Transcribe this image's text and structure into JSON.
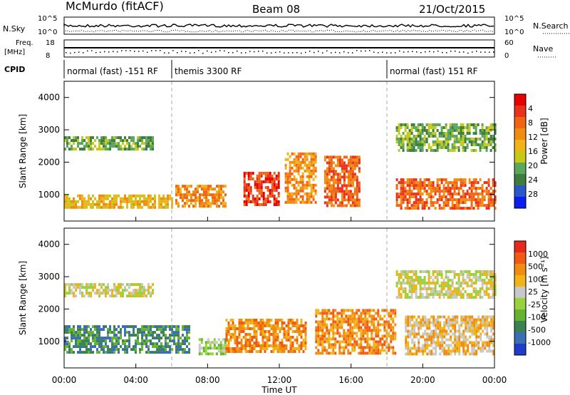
{
  "header": {
    "station": "McMurdo (fitACF)",
    "beam": "Beam 08",
    "date": "21/Oct/2015"
  },
  "status_panels": {
    "left_labels": {
      "nsky": "N.Sky",
      "freq_a": "Freq.",
      "freq_b": "[MHz]",
      "cpid": "CPID"
    },
    "right_labels": {
      "nsearch": "N.Search",
      "nave": "Nave"
    },
    "noise_ticks_left": [
      "10^5",
      "10^0"
    ],
    "noise_ticks_right": [
      "10^5",
      "10^0"
    ],
    "freq_ticks": [
      "18",
      "8"
    ],
    "nave_ticks": [
      "60",
      "0"
    ],
    "cpid_segments": [
      {
        "label": "normal (fast) -151 RF",
        "start_hour": 0.0,
        "end_hour": 6.0
      },
      {
        "label": "themis 3300 RF",
        "start_hour": 6.0,
        "end_hour": 18.0
      },
      {
        "label": "normal (fast) 151 RF",
        "start_hour": 18.0,
        "end_hour": 24.0
      }
    ]
  },
  "chart_data": [
    {
      "type": "heatmap",
      "panel": "power",
      "ylabel": "Slant Range [km]",
      "xlabel": "Time UT",
      "xlim": [
        0,
        24
      ],
      "ylim": [
        180,
        4500
      ],
      "y_ticks": [
        1000,
        2000,
        3000,
        4000
      ],
      "x_tick_labels": [
        "00:00",
        "04:00",
        "08:00",
        "12:00",
        "16:00",
        "20:00",
        "00:00"
      ],
      "x_tick_hours": [
        0,
        4,
        8,
        12,
        16,
        20,
        24
      ],
      "colorbar": {
        "title": "Power [dB]",
        "ticks": [
          "4",
          "8",
          "12",
          "16",
          "20",
          "24",
          "28"
        ],
        "colors": [
          "#0a1ef0",
          "#2a58c8",
          "#3f7d3c",
          "#5aa85a",
          "#c8c818",
          "#f0b418",
          "#f08c10",
          "#f06414",
          "#e8321e",
          "#e80000"
        ]
      },
      "bands": [
        {
          "start_hour": 0.0,
          "end_hour": 6.0,
          "range_low": 600,
          "range_high": 1000,
          "level": 5
        },
        {
          "start_hour": 6.2,
          "end_hour": 9.0,
          "range_low": 600,
          "range_high": 1300,
          "level": 6
        },
        {
          "start_hour": 10.0,
          "end_hour": 12.0,
          "range_low": 700,
          "range_high": 1700,
          "level": 8
        },
        {
          "start_hour": 12.3,
          "end_hour": 14.0,
          "range_low": 800,
          "range_high": 2300,
          "level": 6
        },
        {
          "start_hour": 14.5,
          "end_hour": 16.5,
          "range_low": 700,
          "range_high": 2200,
          "level": 7
        },
        {
          "start_hour": 18.5,
          "end_hour": 24.0,
          "range_low": 600,
          "range_high": 1500,
          "level": 7
        },
        {
          "start_hour": 0.0,
          "end_hour": 5.0,
          "range_low": 2400,
          "range_high": 2800,
          "level": 3
        },
        {
          "start_hour": 18.5,
          "end_hour": 24.0,
          "range_low": 2400,
          "range_high": 3200,
          "level": 3
        }
      ]
    },
    {
      "type": "heatmap",
      "panel": "velocity",
      "ylabel": "Slant Range [km]",
      "xlabel": "Time UT",
      "xlim": [
        0,
        24
      ],
      "ylim": [
        180,
        4500
      ],
      "y_ticks": [
        1000,
        2000,
        3000,
        4000
      ],
      "x_tick_labels": [
        "00:00",
        "04:00",
        "08:00",
        "12:00",
        "16:00",
        "20:00",
        "00:00"
      ],
      "x_tick_hours": [
        0,
        4,
        8,
        12,
        16,
        20,
        24
      ],
      "colorbar": {
        "title": "Velocity [m s⁻¹]",
        "ticks": [
          "1000",
          "500",
          "100",
          "25",
          "-25",
          "-100",
          "-500",
          "-1000"
        ],
        "colors": [
          "#1e3cc8",
          "#3c6eb4",
          "#3c8250",
          "#64b432",
          "#9ad23c",
          "#c8c8c8",
          "#f0b418",
          "#f08c10",
          "#f05a14",
          "#e8281e"
        ]
      },
      "bands": [
        {
          "start_hour": 0.0,
          "end_hour": 7.0,
          "range_low": 650,
          "range_high": 1500,
          "level": 2
        },
        {
          "start_hour": 7.5,
          "end_hour": 9.0,
          "range_low": 650,
          "range_high": 1100,
          "level": 4
        },
        {
          "start_hour": 9.0,
          "end_hour": 13.5,
          "range_low": 700,
          "range_high": 1700,
          "level": 7
        },
        {
          "start_hour": 14.0,
          "end_hour": 18.5,
          "range_low": 650,
          "range_high": 2000,
          "level": 7
        },
        {
          "start_hour": 19.0,
          "end_hour": 24.0,
          "range_low": 650,
          "range_high": 1800,
          "level": 6
        },
        {
          "start_hour": 0.0,
          "end_hour": 5.0,
          "range_low": 2400,
          "range_high": 2800,
          "level": 5
        },
        {
          "start_hour": 18.5,
          "end_hour": 24.0,
          "range_low": 2400,
          "range_high": 3200,
          "level": 5
        }
      ]
    }
  ]
}
